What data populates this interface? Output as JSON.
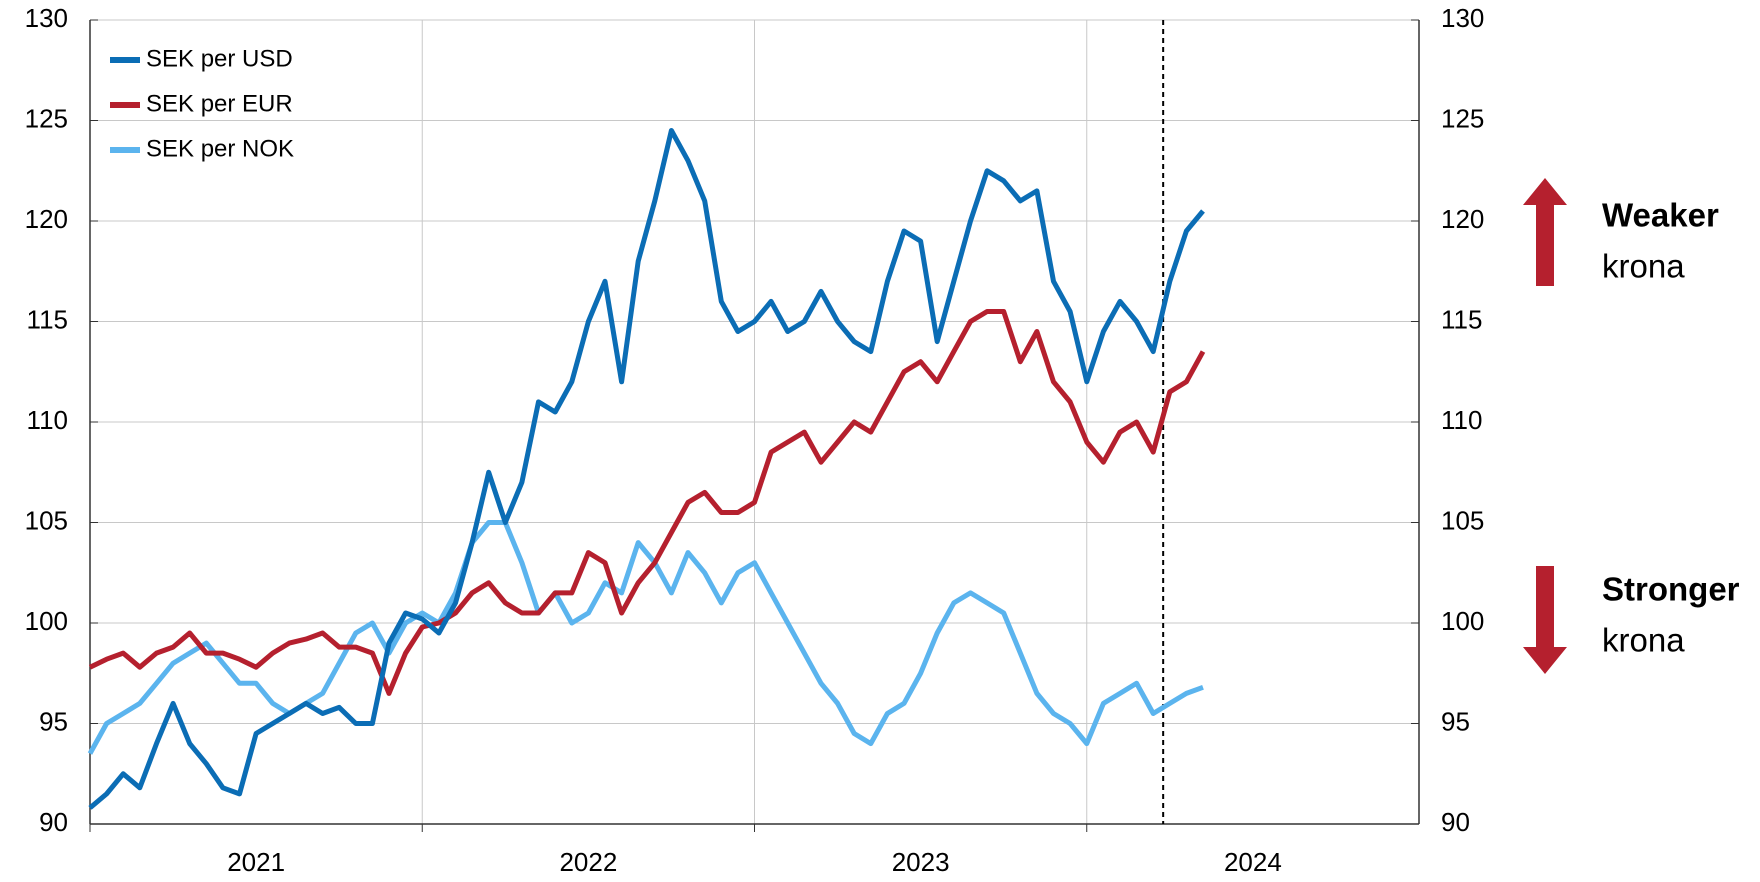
{
  "chart_data": {
    "type": "line",
    "x": [
      2021.0,
      2021.05,
      2021.1,
      2021.15,
      2021.2,
      2021.25,
      2021.3,
      2021.35,
      2021.4,
      2021.45,
      2021.5,
      2021.55,
      2021.6,
      2021.65,
      2021.7,
      2021.75,
      2021.8,
      2021.85,
      2021.9,
      2021.95,
      2022.0,
      2022.05,
      2022.1,
      2022.15,
      2022.2,
      2022.25,
      2022.3,
      2022.35,
      2022.4,
      2022.45,
      2022.5,
      2022.55,
      2022.6,
      2022.65,
      2022.7,
      2022.75,
      2022.8,
      2022.85,
      2022.9,
      2022.95,
      2023.0,
      2023.05,
      2023.1,
      2023.15,
      2023.2,
      2023.25,
      2023.3,
      2023.35,
      2023.4,
      2023.45,
      2023.5,
      2023.55,
      2023.6,
      2023.65,
      2023.7,
      2023.75,
      2023.8,
      2023.85,
      2023.9,
      2023.95,
      2024.0,
      2024.05,
      2024.1,
      2024.15,
      2024.2,
      2024.25,
      2024.3,
      2024.35
    ],
    "series": [
      {
        "name": "SEK per USD",
        "color": "#0b6db5",
        "values": [
          90.8,
          91.5,
          92.5,
          91.8,
          94.0,
          96.0,
          94.0,
          93.0,
          91.8,
          91.5,
          94.5,
          95.0,
          95.5,
          96.0,
          95.5,
          95.8,
          95.0,
          95.0,
          99.0,
          100.5,
          100.2,
          99.5,
          101.0,
          104.0,
          107.5,
          105.0,
          107.0,
          111.0,
          110.5,
          112.0,
          115.0,
          117.0,
          112.0,
          118.0,
          121.0,
          124.5,
          123.0,
          121.0,
          116.0,
          114.5,
          115.0,
          116.0,
          114.5,
          115.0,
          116.5,
          115.0,
          114.0,
          113.5,
          117.0,
          119.5,
          119.0,
          114.0,
          117.0,
          120.0,
          122.5,
          122.0,
          121.0,
          121.5,
          117.0,
          115.5,
          112.0,
          114.5,
          116.0,
          115.0,
          113.5,
          117.0,
          119.5,
          120.5
        ]
      },
      {
        "name": "SEK per EUR",
        "color": "#b5202e",
        "values": [
          97.8,
          98.2,
          98.5,
          97.8,
          98.5,
          98.8,
          99.5,
          98.5,
          98.5,
          98.2,
          97.8,
          98.5,
          99.0,
          99.2,
          99.5,
          98.8,
          98.8,
          98.5,
          96.5,
          98.5,
          99.8,
          100.0,
          100.5,
          101.5,
          102.0,
          101.0,
          100.5,
          100.5,
          101.5,
          101.5,
          103.5,
          103.0,
          100.5,
          102.0,
          103.0,
          104.5,
          106.0,
          106.5,
          105.5,
          105.5,
          106.0,
          108.5,
          109.0,
          109.5,
          108.0,
          109.0,
          110.0,
          109.5,
          111.0,
          112.5,
          113.0,
          112.0,
          113.5,
          115.0,
          115.5,
          115.5,
          113.0,
          114.5,
          112.0,
          111.0,
          109.0,
          108.0,
          109.5,
          110.0,
          108.5,
          111.5,
          112.0,
          113.5
        ]
      },
      {
        "name": "SEK per NOK",
        "color": "#5bb4ee",
        "values": [
          93.5,
          95.0,
          95.5,
          96.0,
          97.0,
          98.0,
          98.5,
          99.0,
          98.0,
          97.0,
          97.0,
          96.0,
          95.5,
          96.0,
          96.5,
          98.0,
          99.5,
          100.0,
          98.5,
          100.0,
          100.5,
          100.0,
          101.5,
          104.0,
          105.0,
          105.0,
          103.0,
          100.5,
          101.5,
          100.0,
          100.5,
          102.0,
          101.5,
          104.0,
          103.0,
          101.5,
          103.5,
          102.5,
          101.0,
          102.5,
          103.0,
          101.5,
          100.0,
          98.5,
          97.0,
          96.0,
          94.5,
          94.0,
          95.5,
          96.0,
          97.5,
          99.5,
          101.0,
          101.5,
          101.0,
          100.5,
          98.5,
          96.5,
          95.5,
          95.0,
          94.0,
          96.0,
          96.5,
          97.0,
          95.5,
          96.0,
          96.5,
          96.8
        ]
      }
    ],
    "xlim": [
      2021,
      2025
    ],
    "xticks": [
      {
        "value": 2021,
        "label": "2021"
      },
      {
        "value": 2022,
        "label": "2022"
      },
      {
        "value": 2023,
        "label": "2023"
      },
      {
        "value": 2024,
        "label": "2024"
      }
    ],
    "ylim": [
      90,
      130
    ],
    "yticks": [
      90,
      95,
      100,
      105,
      110,
      115,
      120,
      125,
      130
    ],
    "y2lim": [
      90,
      130
    ],
    "y2ticks": [
      90,
      95,
      100,
      105,
      110,
      115,
      120,
      125,
      130
    ],
    "vline": 2024.23,
    "grid": true,
    "legend": "upper left",
    "annotations": [
      "Weaker",
      "krona",
      "Stronger",
      "krona"
    ]
  }
}
